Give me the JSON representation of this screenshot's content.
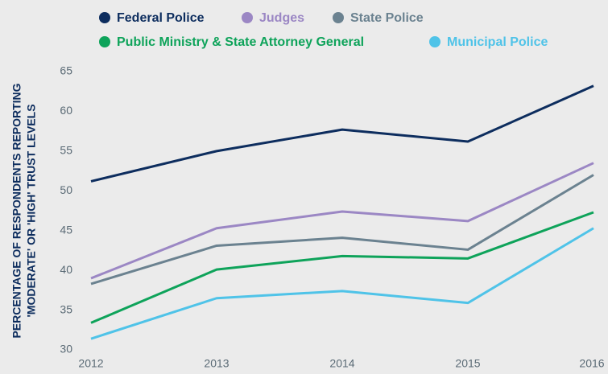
{
  "chart_data": {
    "type": "line",
    "ylabel": [
      "PERCENTAGE OF RESPONDENTS REPORTING",
      "'MODERATE' OR 'HIGH' TRUST LEVELS"
    ],
    "categories": [
      "2012",
      "2013",
      "2014",
      "2015",
      "2016"
    ],
    "ylim": [
      30,
      65
    ],
    "yticks": [
      30,
      35,
      40,
      45,
      50,
      55,
      60,
      65
    ],
    "grid": false,
    "legend": "top",
    "series": [
      {
        "name": "Federal Police",
        "color": "#0d2d5e",
        "values": [
          51.2,
          55.0,
          57.7,
          56.2,
          63.2
        ]
      },
      {
        "name": "Judges",
        "color": "#9b87c4",
        "values": [
          39.0,
          45.3,
          47.4,
          46.2,
          53.5
        ]
      },
      {
        "name": "State Police",
        "color": "#6b8290",
        "values": [
          38.3,
          43.1,
          44.1,
          42.6,
          52.0
        ]
      },
      {
        "name": "Public Ministry & State Attorney General",
        "color": "#0ea35a",
        "values": [
          33.4,
          40.1,
          41.8,
          41.5,
          47.3
        ]
      },
      {
        "name": "Municipal Police",
        "color": "#4fc3e8",
        "values": [
          31.4,
          36.5,
          37.4,
          35.9,
          45.3
        ]
      }
    ]
  }
}
